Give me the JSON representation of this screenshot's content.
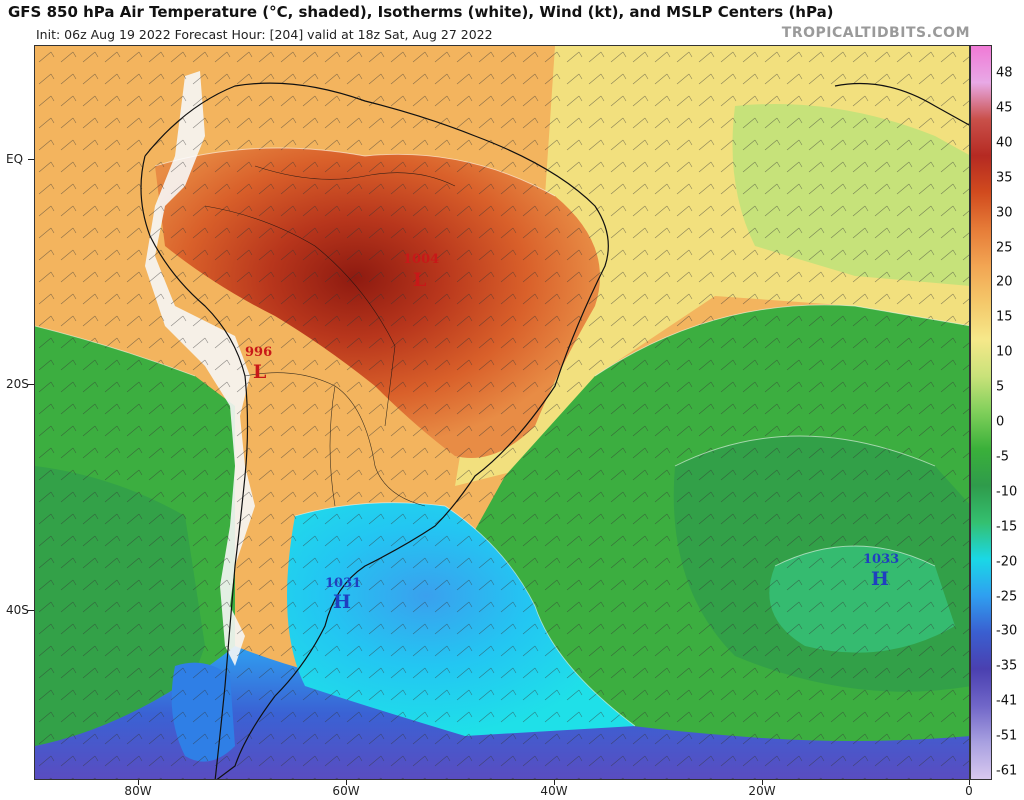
{
  "title": "GFS 850 hPa Air Temperature (°C, shaded), Isotherms (white), Wind (kt), and MSLP Centers (hPa)",
  "subtitle": "Init: 06z Aug 19 2022   Forecast Hour: [204]   valid at 18z Sat, Aug 27 2022",
  "credit": "TROPICALTIDBITS.COM",
  "lat_labels": [
    "EQ",
    "20S",
    "40S"
  ],
  "lon_labels": [
    "80W",
    "60W",
    "40W",
    "20W",
    "0"
  ],
  "colorbar": {
    "labels": [
      "48",
      "45",
      "40",
      "35",
      "30",
      "25",
      "20",
      "15",
      "10",
      "5",
      "0",
      "-5",
      "-10",
      "-15",
      "-20",
      "-25",
      "-30",
      "-35",
      "-41",
      "-51",
      "-61"
    ],
    "colors": [
      "#f07ad6",
      "#e8a9e6",
      "#c9504a",
      "#b52a22",
      "#d14b1e",
      "#e67c38",
      "#f2a553",
      "#f4c86a",
      "#f6e88a",
      "#c9e27a",
      "#7fcf5a",
      "#3ab03a",
      "#2f9b4b",
      "#34c070",
      "#1ad8e6",
      "#2f9ff0",
      "#3a5fd0",
      "#4a40b0",
      "#7066c8",
      "#a8a0e0",
      "#d8c8ef"
    ]
  },
  "pressure_centers": [
    {
      "value": "1004",
      "symbol": "L",
      "color": "#c81818"
    },
    {
      "value": "996",
      "symbol": "L",
      "color": "#c81818"
    },
    {
      "value": "1031",
      "symbol": "H",
      "color": "#1f3fc0"
    },
    {
      "value": "1033",
      "symbol": "H",
      "color": "#1f3fc0"
    }
  ]
}
